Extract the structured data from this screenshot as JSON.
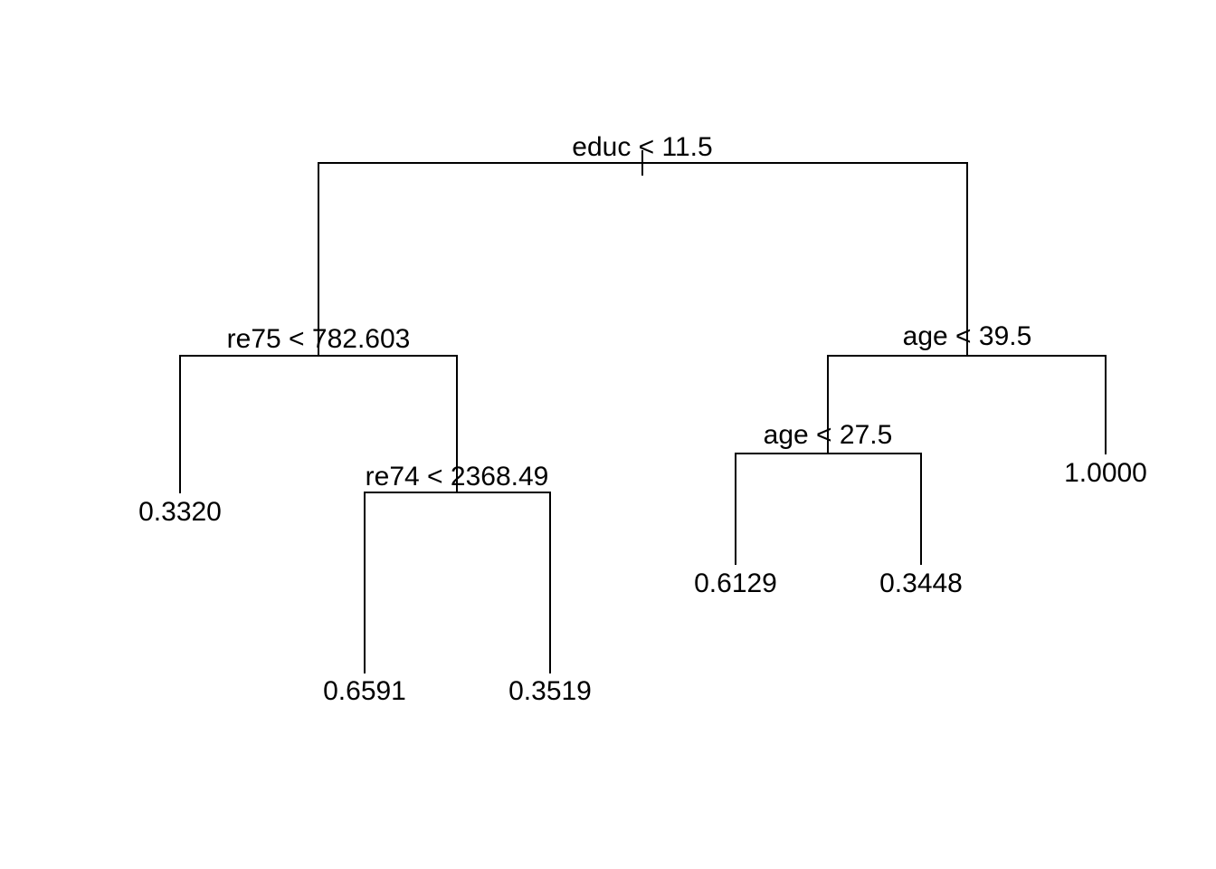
{
  "tree": {
    "splits": {
      "root": "educ < 11.5",
      "left": "re75 < 782.603",
      "left_right": "re74 < 2368.49",
      "right": "age < 39.5",
      "right_left": "age < 27.5"
    },
    "leaves": {
      "left_left": "0.3320",
      "left_right_left": "0.6591",
      "left_right_right": "0.3519",
      "right_left_left": "0.6129",
      "right_left_right": "0.3448",
      "right_right": "1.0000"
    }
  }
}
